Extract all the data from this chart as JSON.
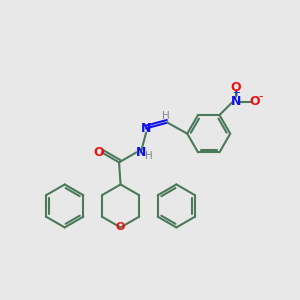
{
  "bg_color": "#e8e8e8",
  "bond_color": "#4a7a5a",
  "N_color": "#1010ee",
  "O_color": "#ee1010",
  "H_color": "#888888",
  "lw": 1.5,
  "fig_size": [
    3.0,
    3.0
  ],
  "dpi": 100,
  "xlim": [
    0,
    10
  ],
  "ylim": [
    0,
    10
  ]
}
